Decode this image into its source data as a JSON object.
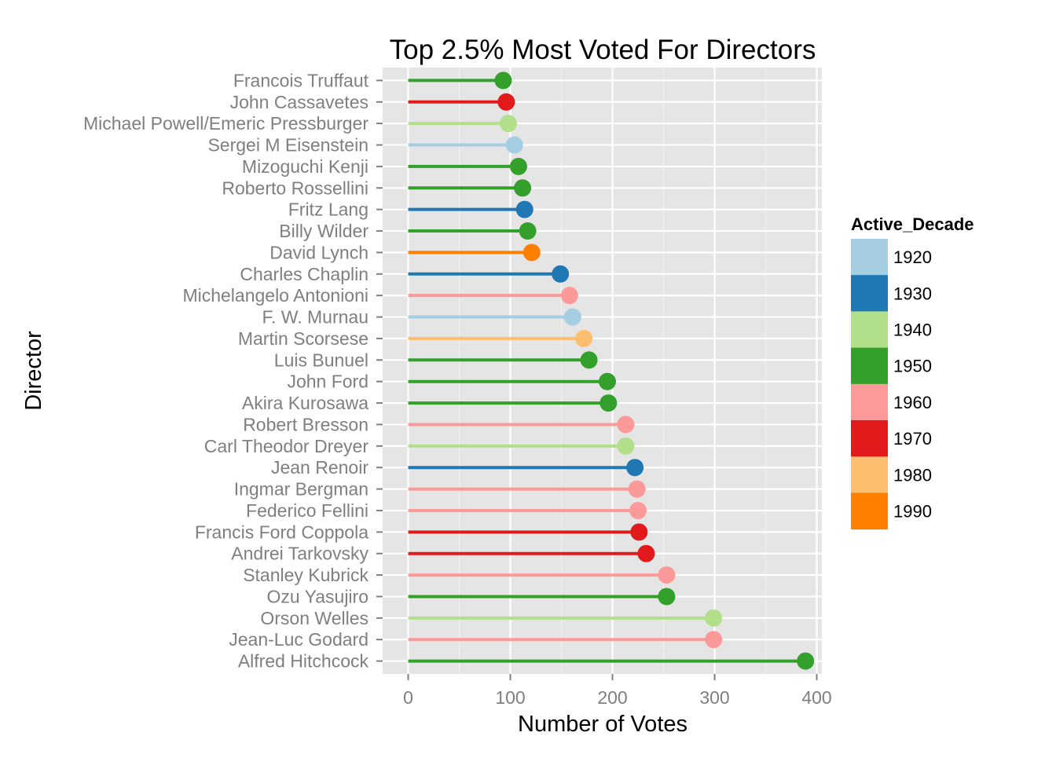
{
  "chart_data": {
    "type": "lollipop",
    "title": "Top 2.5% Most Voted For Directors",
    "xlabel": "Number of Votes",
    "ylabel": "Director",
    "xlim": [
      -25,
      405
    ],
    "xticks": [
      0,
      100,
      200,
      300,
      400
    ],
    "grid": true,
    "legend": {
      "title": "Active_Decade",
      "placement": "right",
      "items": [
        {
          "label": "1920",
          "color": "#A6CEE3"
        },
        {
          "label": "1930",
          "color": "#1F78B4"
        },
        {
          "label": "1940",
          "color": "#B2DF8A"
        },
        {
          "label": "1950",
          "color": "#33A02C"
        },
        {
          "label": "1960",
          "color": "#FB9A99"
        },
        {
          "label": "1970",
          "color": "#E31A1C"
        },
        {
          "label": "1980",
          "color": "#FDBF6F"
        },
        {
          "label": "1990",
          "color": "#FF7F00"
        }
      ]
    },
    "categories": [
      "Francois Truffaut",
      "John Cassavetes",
      "Michael Powell/Emeric Pressburger",
      "Sergei M Eisenstein",
      "Mizoguchi Kenji",
      "Roberto Rossellini",
      "Fritz Lang",
      "Billy Wilder",
      "David Lynch",
      "Charles Chaplin",
      "Michelangelo Antonioni",
      "F. W. Murnau",
      "Martin Scorsese",
      "Luis Bunuel",
      "John Ford",
      "Akira Kurosawa",
      "Robert Bresson",
      "Carl Theodor Dreyer",
      "Jean Renoir",
      "Ingmar Bergman",
      "Federico Fellini",
      "Francis Ford Coppola",
      "Andrei Tarkovsky",
      "Stanley Kubrick",
      "Ozu Yasujiro",
      "Orson Welles",
      "Jean-Luc Godard",
      "Alfred Hitchcock"
    ],
    "values": [
      93,
      96,
      98,
      104,
      108,
      112,
      114,
      117,
      121,
      149,
      158,
      161,
      172,
      177,
      195,
      196,
      213,
      213,
      222,
      224,
      225,
      226,
      233,
      253,
      253,
      299,
      299,
      389
    ],
    "decades": [
      "1950",
      "1970",
      "1940",
      "1920",
      "1950",
      "1950",
      "1930",
      "1950",
      "1990",
      "1930",
      "1960",
      "1920",
      "1980",
      "1950",
      "1950",
      "1950",
      "1960",
      "1940",
      "1930",
      "1960",
      "1960",
      "1970",
      "1970",
      "1960",
      "1950",
      "1940",
      "1960",
      "1950"
    ]
  }
}
